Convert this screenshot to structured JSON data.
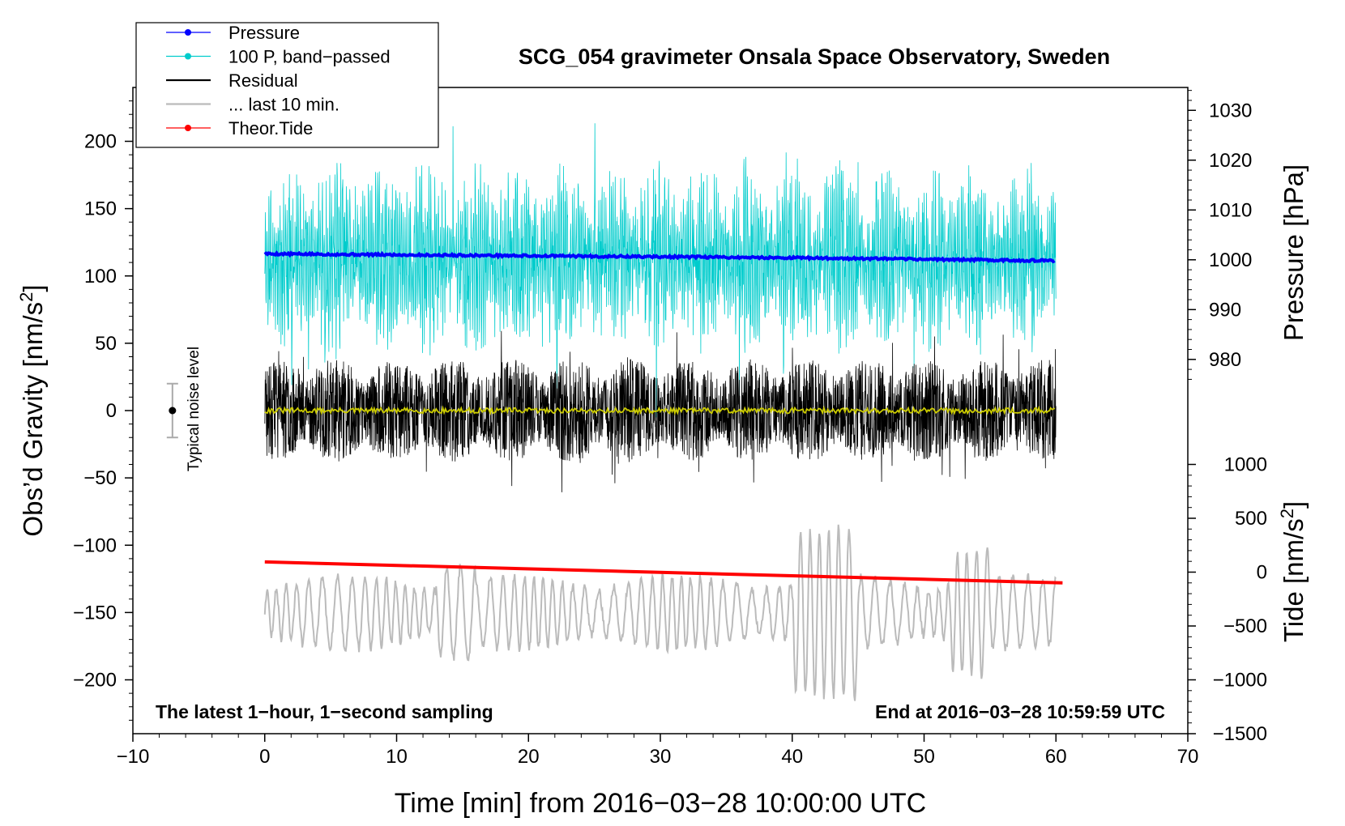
{
  "chart_data": {
    "type": "line",
    "title": "SCG_054 gravimeter Onsala Space Observatory, Sweden",
    "xlabel": "Time [min] from 2016−03−28 10:00:00 UTC",
    "ylabel_left_main": "Obs’d Gravity [nm/s",
    "ylabel_left_sup": "2",
    "ylabel_left_close": "]",
    "ylabel_right_pressure": "Pressure [hPa]",
    "ylabel_right_tide_main": "Tide [nm/s",
    "ylabel_right_tide_sup": "2",
    "ylabel_right_tide_close": "]",
    "xlim": [
      -10,
      70
    ],
    "ylim": [
      -240,
      240
    ],
    "x_ticks": [
      -10,
      0,
      10,
      20,
      30,
      40,
      50,
      60,
      70
    ],
    "x_tick_labels": [
      "−10",
      "0",
      "10",
      "20",
      "30",
      "40",
      "50",
      "60",
      "70"
    ],
    "y_ticks": [
      200,
      150,
      100,
      50,
      0,
      -50,
      -100,
      -150,
      -200
    ],
    "y_tick_labels": [
      "200",
      "150",
      "100",
      "50",
      "0",
      "−50",
      "−100",
      "−150",
      "−200"
    ],
    "pressure_ticks": [
      1030,
      1020,
      1010,
      1000,
      990,
      980
    ],
    "pressure_tick_labels": [
      "1030",
      "1020",
      "1010",
      "1000",
      "990",
      "980"
    ],
    "pressure_mapping": {
      "p1": 1000,
      "g1": 112,
      "p2": 1030,
      "g2": 223
    },
    "tide_ticks": [
      1000,
      500,
      0,
      -500,
      -1000,
      -1500
    ],
    "tide_tick_labels": [
      "1000",
      "500",
      "0",
      "−500",
      "−1000",
      "−1500"
    ],
    "tide_mapping": {
      "t1": 0,
      "g1": -120,
      "t2": 1000,
      "g2": -40
    },
    "legend": [
      {
        "label": "Pressure",
        "color": "#0000ff",
        "marker": true
      },
      {
        "label": "100 P, band−passed",
        "color": "#00cccc",
        "marker": true
      },
      {
        "label": "Residual",
        "color": "#000000",
        "marker": false
      },
      {
        "label": "... last 10 min.",
        "color": "#bbbbbb",
        "marker": false
      },
      {
        "label": "Theor.Tide",
        "color": "#ff0000",
        "marker": true
      }
    ],
    "annotation_left": "The latest 1−hour, 1−second sampling",
    "annotation_right": "End at 2016−03−28 10:59:59 UTC",
    "noise_label": "Typical noise level",
    "noise_bar": {
      "x": -7,
      "center": 0,
      "half_range": 20
    },
    "series": [
      {
        "name": "Pressure",
        "color": "#0000ff",
        "x": [
          0,
          10,
          20,
          30,
          40,
          50,
          60
        ],
        "pressure_hPa": [
          1001.2,
          1001.0,
          1000.8,
          1000.6,
          1000.4,
          1000.1,
          999.8
        ]
      },
      {
        "name": "100 P, band−passed",
        "color": "#00cccc",
        "x_range": [
          0,
          60
        ],
        "center": 112,
        "amplitude": 60
      },
      {
        "name": "Residual",
        "color": "#000000",
        "x_range": [
          0,
          60
        ],
        "center": 0,
        "amplitude": 45
      },
      {
        "name": "... last 10 min.",
        "color": "#bbbbbb",
        "x_range": [
          0,
          60
        ],
        "center": -150,
        "amplitude": 45
      },
      {
        "name": "Smoothed residual",
        "color": "#cccc00",
        "x_range": [
          0,
          60
        ],
        "center": 0,
        "amplitude": 2
      },
      {
        "name": "Theor.Tide",
        "color": "#ff0000",
        "x": [
          0,
          60.5
        ],
        "tide_nm_s2": [
          95,
          -100
        ]
      }
    ]
  }
}
